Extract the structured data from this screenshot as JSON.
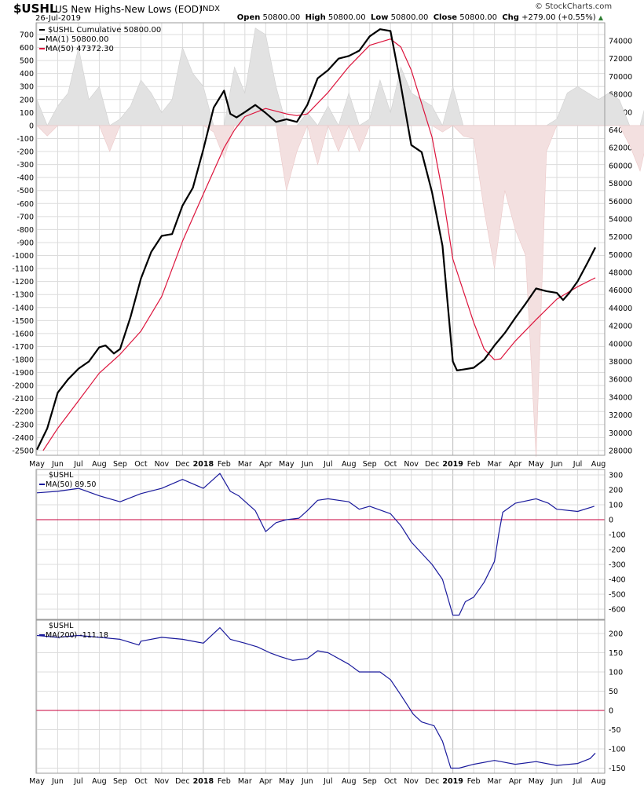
{
  "header": {
    "symbol": "$USHL",
    "name": "US New Highs-New Lows (EOD)",
    "type": "INDX",
    "date": "26-Jul-2019",
    "brand": "© StockCharts.com",
    "open_label": "Open",
    "open": "50800.00",
    "high_label": "High",
    "high": "50800.00",
    "low_label": "Low",
    "low": "50800.00",
    "close_label": "Close",
    "close": "50800.00",
    "chg_label": "Chg",
    "chg": "+279.00 (+0.55%)"
  },
  "colors": {
    "black": "#000000",
    "ma": "#dc143c",
    "osc": "#1a1a9c",
    "zero": "#c8003c",
    "pos_fill": "#e2e2e2",
    "neg_fill": "#f3e0e0",
    "grid": "#dcdcdc"
  },
  "chart_data": [
    {
      "type": "line",
      "title": "$USHL Cumulative",
      "legend": [
        "$USHL Cumulative 50800.00",
        "MA(1) 50800.00",
        "MA(50) 47372.30"
      ],
      "x_unit": "months since May 2017",
      "x_ticks": [
        "May",
        "Jun",
        "Jul",
        "Aug",
        "Sep",
        "Oct",
        "Nov",
        "Dec",
        "2018",
        "Feb",
        "Mar",
        "Apr",
        "May",
        "Jun",
        "Jul",
        "Aug",
        "Sep",
        "Oct",
        "Nov",
        "Dec",
        "2019",
        "Feb",
        "Mar",
        "Apr",
        "May",
        "Jun",
        "Jul",
        "Aug"
      ],
      "left_axis": {
        "label": "NH-NL",
        "ylim": [
          -2500,
          700
        ],
        "ticks": [
          700,
          600,
          500,
          400,
          300,
          200,
          100,
          0,
          -100,
          -200,
          -300,
          -400,
          -500,
          -600,
          -700,
          -800,
          -900,
          -1000,
          -1100,
          -1200,
          -1300,
          -1400,
          -1500,
          -1600,
          -1700,
          -1800,
          -1900,
          -2000,
          -2100,
          -2200,
          -2300,
          -2400,
          -2500
        ]
      },
      "right_axis": {
        "ylim": [
          28000,
          74000
        ],
        "ticks": [
          74000,
          72000,
          70000,
          68000,
          66000,
          64000,
          62000,
          60000,
          58000,
          56000,
          54000,
          52000,
          50000,
          48000,
          46000,
          44000,
          42000,
          40000,
          38000,
          36000,
          34000,
          32000,
          30000,
          28000
        ]
      },
      "histogram": {
        "name": "$USHL daily (NH-NL)",
        "t_step": 0.5,
        "values": [
          200,
          -80,
          150,
          250,
          600,
          200,
          300,
          -200,
          50,
          150,
          350,
          250,
          100,
          200,
          600,
          400,
          300,
          -50,
          -250,
          450,
          250,
          750,
          700,
          300,
          -500,
          -200,
          100,
          -300,
          150,
          -200,
          250,
          -200,
          50,
          350,
          100,
          450,
          250,
          200,
          150,
          -50,
          300,
          -80,
          -100,
          -650,
          -1100,
          -500,
          -800,
          -1000,
          -2550,
          -200,
          50,
          250,
          300,
          250,
          200,
          250,
          200,
          -150,
          -350,
          300,
          400,
          250,
          300
        ]
      },
      "series": [
        {
          "name": "MA(1)",
          "axis": "right",
          "t": [
            0,
            0.5,
            1,
            1.5,
            2,
            2.5,
            3,
            3.3,
            3.7,
            4,
            4.5,
            5,
            5.5,
            6,
            6.5,
            7,
            7.5,
            8,
            8.5,
            9,
            9.3,
            9.6,
            10,
            10.5,
            11,
            11.5,
            12,
            12.5,
            13,
            13.5,
            14,
            14.5,
            15,
            15.5,
            16,
            16.5,
            17,
            17.5,
            18,
            18.5,
            19,
            19.5,
            20,
            20.2,
            20.5,
            21,
            21.5,
            22,
            22.5,
            23,
            23.5,
            24,
            24.5,
            25,
            25.3,
            25.6,
            26,
            26.5,
            26.85
          ],
          "values": [
            28100,
            30500,
            34500,
            36000,
            37200,
            38000,
            39600,
            39800,
            38900,
            39400,
            43000,
            47300,
            50300,
            52100,
            52300,
            55500,
            57500,
            61800,
            66500,
            68400,
            65800,
            65400,
            66000,
            66800,
            65900,
            64900,
            65200,
            64900,
            66800,
            69800,
            70700,
            72000,
            72300,
            72900,
            74500,
            75300,
            75100,
            69000,
            62300,
            61500,
            57000,
            51000,
            38000,
            37000,
            37100,
            37300,
            38200,
            39800,
            41200,
            42900,
            44500,
            46200,
            45900,
            45700,
            44900,
            45700,
            47000,
            49200,
            50800
          ]
        },
        {
          "name": "MA(50)",
          "axis": "right",
          "t": [
            0.3,
            1,
            2,
            3,
            4,
            5,
            6,
            7,
            8,
            9,
            9.5,
            10,
            11,
            12,
            12.5,
            13,
            14,
            15,
            16,
            17,
            17.5,
            18,
            19,
            19.5,
            20,
            21,
            21.5,
            22,
            22.3,
            23,
            24,
            25,
            26,
            26.85
          ],
          "values": [
            28000,
            30500,
            33600,
            36700,
            38800,
            41400,
            45300,
            51500,
            56800,
            62000,
            64000,
            65500,
            66400,
            65800,
            65600,
            65800,
            68200,
            71100,
            73500,
            74200,
            73300,
            70700,
            63200,
            57000,
            49500,
            42400,
            39400,
            38200,
            38300,
            40300,
            42700,
            45000,
            46400,
            47400
          ]
        }
      ]
    },
    {
      "type": "line",
      "legend_symbol": "$USHL",
      "legend": [
        "MA(50) 89.50"
      ],
      "ylim": [
        -650,
        330
      ],
      "ticks": [
        300,
        200,
        100,
        0,
        -100,
        -200,
        -300,
        -400,
        -500,
        -600
      ],
      "series": [
        {
          "name": "MA(50)",
          "t": [
            0,
            1,
            2,
            3,
            4,
            5,
            6,
            7,
            8,
            8.8,
            9.3,
            9.7,
            10.5,
            11,
            11.5,
            12,
            12.6,
            13,
            13.5,
            14,
            15,
            15.5,
            16,
            17,
            17.5,
            18,
            19,
            19.5,
            20,
            20.3,
            20.6,
            21,
            21.5,
            22,
            22.2,
            22.4,
            23,
            24,
            24.6,
            25,
            26,
            26.8
          ],
          "values": [
            180,
            190,
            210,
            160,
            120,
            175,
            210,
            270,
            210,
            310,
            190,
            160,
            60,
            -80,
            -20,
            0,
            10,
            60,
            130,
            140,
            120,
            70,
            90,
            40,
            -40,
            -150,
            -300,
            -400,
            -640,
            -640,
            -550,
            -520,
            -420,
            -280,
            -100,
            50,
            110,
            140,
            110,
            70,
            55,
            90
          ]
        }
      ]
    },
    {
      "type": "line",
      "legend_symbol": "$USHL",
      "legend": [
        "MA(200) -111.18"
      ],
      "ylim": [
        -165,
        225
      ],
      "ticks": [
        200,
        150,
        100,
        50,
        0,
        -50,
        -100,
        -150
      ],
      "series": [
        {
          "name": "MA(200)",
          "t": [
            0,
            1,
            2,
            3,
            4,
            4.9,
            5,
            6,
            7,
            8,
            8.8,
            9.3,
            10,
            10.6,
            11.2,
            11.7,
            12.3,
            13,
            13.5,
            14,
            15,
            15.5,
            16.5,
            17,
            17.5,
            18.1,
            18.5,
            19.1,
            19.5,
            19.9,
            20.3,
            21,
            22,
            23,
            24,
            25,
            26,
            26.6,
            26.85
          ],
          "values": [
            195,
            190,
            195,
            190,
            185,
            170,
            180,
            190,
            185,
            175,
            215,
            185,
            175,
            165,
            150,
            140,
            130,
            135,
            155,
            150,
            120,
            100,
            100,
            80,
            40,
            -10,
            -30,
            -40,
            -80,
            -150,
            -150,
            -140,
            -130,
            -140,
            -133,
            -143,
            -138,
            -125,
            -111
          ]
        }
      ]
    }
  ]
}
